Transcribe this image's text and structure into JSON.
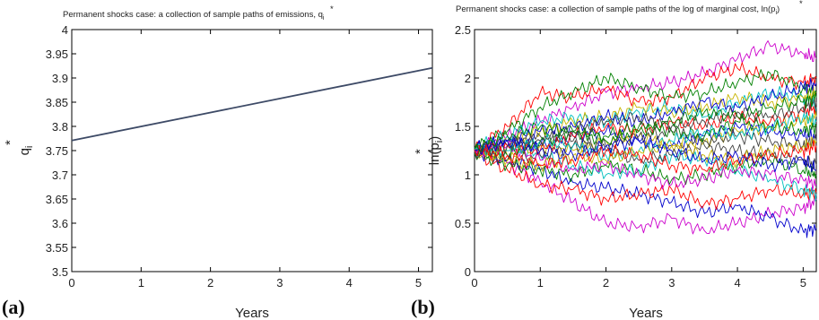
{
  "chart_data": [
    {
      "type": "line",
      "panel_label": "(a)",
      "title": "Permanent shocks case: a collection of sample paths of emissions, q",
      "title_sym": "i",
      "title_star": "*",
      "xlabel": "Years",
      "ylabel_main": "q",
      "ylabel_sub": "i",
      "ylabel_sup": "*",
      "xlim": [
        0,
        5.2
      ],
      "ylim": [
        3.5,
        4.0
      ],
      "xticks": [
        "0",
        "1",
        "2",
        "3",
        "4",
        "5"
      ],
      "yticks": [
        "3.5",
        "3.55",
        "3.6",
        "3.65",
        "3.7",
        "3.75",
        "3.8",
        "3.85",
        "3.9",
        "3.95",
        "4"
      ],
      "grid": false,
      "series": [
        {
          "color": "#3d4a66",
          "x": [
            0,
            5.2
          ],
          "y": [
            3.771,
            3.921
          ]
        }
      ]
    },
    {
      "type": "line",
      "panel_label": "(b)",
      "title": "Permanent shocks case: a collection of sample paths of the log of marginal cost, ln(p",
      "title_sym": "i",
      "title_star": "*",
      "title_close": ")",
      "xlabel": "Years",
      "ylabel_main": "ln(p",
      "ylabel_sub": "i",
      "ylabel_sup": "*",
      "ylabel_close": ")",
      "xlim": [
        0,
        5.2
      ],
      "ylim": [
        0,
        2.5
      ],
      "xticks": [
        "0",
        "1",
        "2",
        "3",
        "4",
        "5"
      ],
      "yticks": [
        "0",
        "0.5",
        "1",
        "1.5",
        "2",
        "2.5"
      ],
      "grid": false,
      "series": [
        {
          "color": "#cc00cc",
          "x": [
            0,
            0.5,
            1,
            1.5,
            2,
            2.5,
            3,
            3.5,
            4,
            4.5,
            5,
            5.2
          ],
          "y": [
            1.27,
            1.12,
            0.93,
            0.72,
            0.5,
            0.46,
            0.55,
            0.42,
            0.5,
            0.6,
            0.66,
            0.74
          ]
        },
        {
          "color": "#cc00cc",
          "x": [
            0,
            0.5,
            1,
            1.5,
            2,
            2.5,
            3,
            3.5,
            4,
            4.5,
            5,
            5.2
          ],
          "y": [
            1.25,
            1.4,
            1.55,
            1.7,
            1.85,
            1.9,
            1.95,
            2.05,
            2.2,
            2.33,
            2.25,
            2.2
          ]
        },
        {
          "color": "#0000cc",
          "x": [
            0,
            0.5,
            1,
            1.5,
            2,
            2.5,
            3,
            3.5,
            4,
            4.5,
            5,
            5.2
          ],
          "y": [
            1.24,
            1.15,
            1.05,
            0.92,
            0.86,
            0.8,
            0.72,
            0.6,
            0.68,
            0.55,
            0.42,
            0.45
          ]
        },
        {
          "color": "#0000cc",
          "x": [
            0,
            0.5,
            1,
            1.5,
            2,
            2.5,
            3,
            3.5,
            4,
            4.5,
            5,
            5.2
          ],
          "y": [
            1.28,
            1.35,
            1.3,
            1.4,
            1.45,
            1.35,
            1.3,
            1.4,
            1.5,
            1.45,
            1.4,
            1.4
          ]
        },
        {
          "color": "#ff0000",
          "x": [
            0,
            0.5,
            1,
            1.5,
            2,
            2.5,
            3,
            3.5,
            4,
            4.5,
            5,
            5.2
          ],
          "y": [
            1.26,
            1.5,
            1.85,
            1.8,
            1.9,
            1.75,
            1.8,
            2.0,
            2.1,
            2.0,
            1.95,
            2.0
          ]
        },
        {
          "color": "#ff0000",
          "x": [
            0,
            0.5,
            1,
            1.5,
            2,
            2.5,
            3,
            3.5,
            4,
            4.5,
            5,
            5.2
          ],
          "y": [
            1.23,
            1.05,
            0.9,
            0.85,
            0.75,
            0.8,
            0.85,
            0.7,
            0.75,
            0.85,
            0.8,
            0.82
          ]
        },
        {
          "color": "#008000",
          "x": [
            0,
            0.5,
            1,
            1.5,
            2,
            2.5,
            3,
            3.5,
            4,
            4.5,
            5,
            5.2
          ],
          "y": [
            1.27,
            1.45,
            1.7,
            1.85,
            2.0,
            1.9,
            1.8,
            1.85,
            1.95,
            2.05,
            1.9,
            1.85
          ]
        },
        {
          "color": "#008000",
          "x": [
            0,
            0.5,
            1,
            1.5,
            2,
            2.5,
            3,
            3.5,
            4,
            4.5,
            5,
            5.2
          ],
          "y": [
            1.22,
            1.1,
            1.05,
            1.0,
            1.1,
            1.05,
            0.95,
            1.0,
            1.1,
            1.15,
            1.05,
            1.0
          ]
        },
        {
          "color": "#00bfbf",
          "x": [
            0,
            0.5,
            1,
            1.5,
            2,
            2.5,
            3,
            3.5,
            4,
            4.5,
            5,
            5.2
          ],
          "y": [
            1.25,
            1.3,
            1.2,
            1.1,
            1.0,
            1.05,
            1.2,
            1.15,
            1.05,
            0.95,
            0.85,
            0.8
          ]
        },
        {
          "color": "#00bfbf",
          "x": [
            0,
            0.5,
            1,
            1.5,
            2,
            2.5,
            3,
            3.5,
            4,
            4.5,
            5,
            5.2
          ],
          "y": [
            1.28,
            1.4,
            1.55,
            1.6,
            1.55,
            1.65,
            1.7,
            1.6,
            1.75,
            1.85,
            1.8,
            1.7
          ]
        },
        {
          "color": "#c8b400",
          "x": [
            0,
            0.5,
            1,
            1.5,
            2,
            2.5,
            3,
            3.5,
            4,
            4.5,
            5,
            5.2
          ],
          "y": [
            1.26,
            1.35,
            1.45,
            1.55,
            1.6,
            1.7,
            1.65,
            1.7,
            1.8,
            1.75,
            1.8,
            1.85
          ]
        },
        {
          "color": "#c8b400",
          "x": [
            0,
            0.5,
            1,
            1.5,
            2,
            2.5,
            3,
            3.5,
            4,
            4.5,
            5,
            5.2
          ],
          "y": [
            1.24,
            1.2,
            1.3,
            1.25,
            1.35,
            1.4,
            1.3,
            1.35,
            1.45,
            1.5,
            1.55,
            1.6
          ]
        },
        {
          "color": "#404040",
          "x": [
            0,
            0.5,
            1,
            1.5,
            2,
            2.5,
            3,
            3.5,
            4,
            4.5,
            5,
            5.2
          ],
          "y": [
            1.25,
            1.3,
            1.4,
            1.35,
            1.3,
            1.4,
            1.45,
            1.35,
            1.4,
            1.35,
            1.3,
            1.35
          ]
        },
        {
          "color": "#404040",
          "x": [
            0,
            0.5,
            1,
            1.5,
            2,
            2.5,
            3,
            3.5,
            4,
            4.5,
            5,
            5.2
          ],
          "y": [
            1.26,
            1.15,
            1.2,
            1.3,
            1.25,
            1.15,
            1.2,
            1.3,
            1.25,
            1.2,
            1.15,
            1.1
          ]
        },
        {
          "color": "#cc00cc",
          "x": [
            0,
            0.5,
            1,
            1.5,
            2,
            2.5,
            3,
            3.5,
            4,
            4.5,
            5,
            5.2
          ],
          "y": [
            1.25,
            1.3,
            1.15,
            1.05,
            1.1,
            1.0,
            0.9,
            0.95,
            1.05,
            1.0,
            0.95,
            0.9
          ]
        },
        {
          "color": "#0000cc",
          "x": [
            0,
            0.5,
            1,
            1.5,
            2,
            2.5,
            3,
            3.5,
            4,
            4.5,
            5,
            5.2
          ],
          "y": [
            1.27,
            1.35,
            1.45,
            1.5,
            1.6,
            1.55,
            1.65,
            1.75,
            1.7,
            1.8,
            1.9,
            1.95
          ]
        },
        {
          "color": "#ff0000",
          "x": [
            0,
            0.5,
            1,
            1.5,
            2,
            2.5,
            3,
            3.5,
            4,
            4.5,
            5,
            5.2
          ],
          "y": [
            1.24,
            1.3,
            1.25,
            1.4,
            1.5,
            1.45,
            1.55,
            1.5,
            1.6,
            1.55,
            1.65,
            1.7
          ]
        },
        {
          "color": "#008000",
          "x": [
            0,
            0.5,
            1,
            1.5,
            2,
            2.5,
            3,
            3.5,
            4,
            4.5,
            5,
            5.2
          ],
          "y": [
            1.25,
            1.2,
            1.35,
            1.45,
            1.4,
            1.5,
            1.45,
            1.4,
            1.55,
            1.5,
            1.45,
            1.5
          ]
        },
        {
          "color": "#00bfbf",
          "x": [
            0,
            0.5,
            1,
            1.5,
            2,
            2.5,
            3,
            3.5,
            4,
            4.5,
            5,
            5.2
          ],
          "y": [
            1.26,
            1.25,
            1.35,
            1.3,
            1.2,
            1.25,
            1.35,
            1.45,
            1.4,
            1.5,
            1.6,
            1.55
          ]
        },
        {
          "color": "#c8b400",
          "x": [
            0,
            0.5,
            1,
            1.5,
            2,
            2.5,
            3,
            3.5,
            4,
            4.5,
            5,
            5.2
          ],
          "y": [
            1.25,
            1.15,
            1.1,
            1.2,
            1.15,
            1.25,
            1.3,
            1.2,
            1.15,
            1.25,
            1.3,
            1.35
          ]
        },
        {
          "color": "#404040",
          "x": [
            0,
            0.5,
            1,
            1.5,
            2,
            2.5,
            3,
            3.5,
            4,
            4.5,
            5,
            5.2
          ],
          "y": [
            1.24,
            1.3,
            1.35,
            1.45,
            1.55,
            1.6,
            1.5,
            1.55,
            1.65,
            1.6,
            1.7,
            1.75
          ]
        },
        {
          "color": "#ff0000",
          "x": [
            0,
            0.5,
            1,
            1.5,
            2,
            2.5,
            3,
            3.5,
            4,
            4.5,
            5,
            5.2
          ],
          "y": [
            1.26,
            1.2,
            1.1,
            1.15,
            1.25,
            1.2,
            1.1,
            1.05,
            1.15,
            1.2,
            1.25,
            1.3
          ]
        },
        {
          "color": "#0000cc",
          "x": [
            0,
            0.5,
            1,
            1.5,
            2,
            2.5,
            3,
            3.5,
            4,
            4.5,
            5,
            5.2
          ],
          "y": [
            1.25,
            1.35,
            1.25,
            1.2,
            1.3,
            1.35,
            1.25,
            1.15,
            1.2,
            1.1,
            1.15,
            1.05
          ]
        },
        {
          "color": "#008000",
          "x": [
            0,
            0.5,
            1,
            1.5,
            2,
            2.5,
            3,
            3.5,
            4,
            4.5,
            5,
            5.2
          ],
          "y": [
            1.27,
            1.4,
            1.5,
            1.45,
            1.35,
            1.45,
            1.55,
            1.65,
            1.6,
            1.7,
            1.75,
            1.8
          ]
        }
      ]
    }
  ]
}
